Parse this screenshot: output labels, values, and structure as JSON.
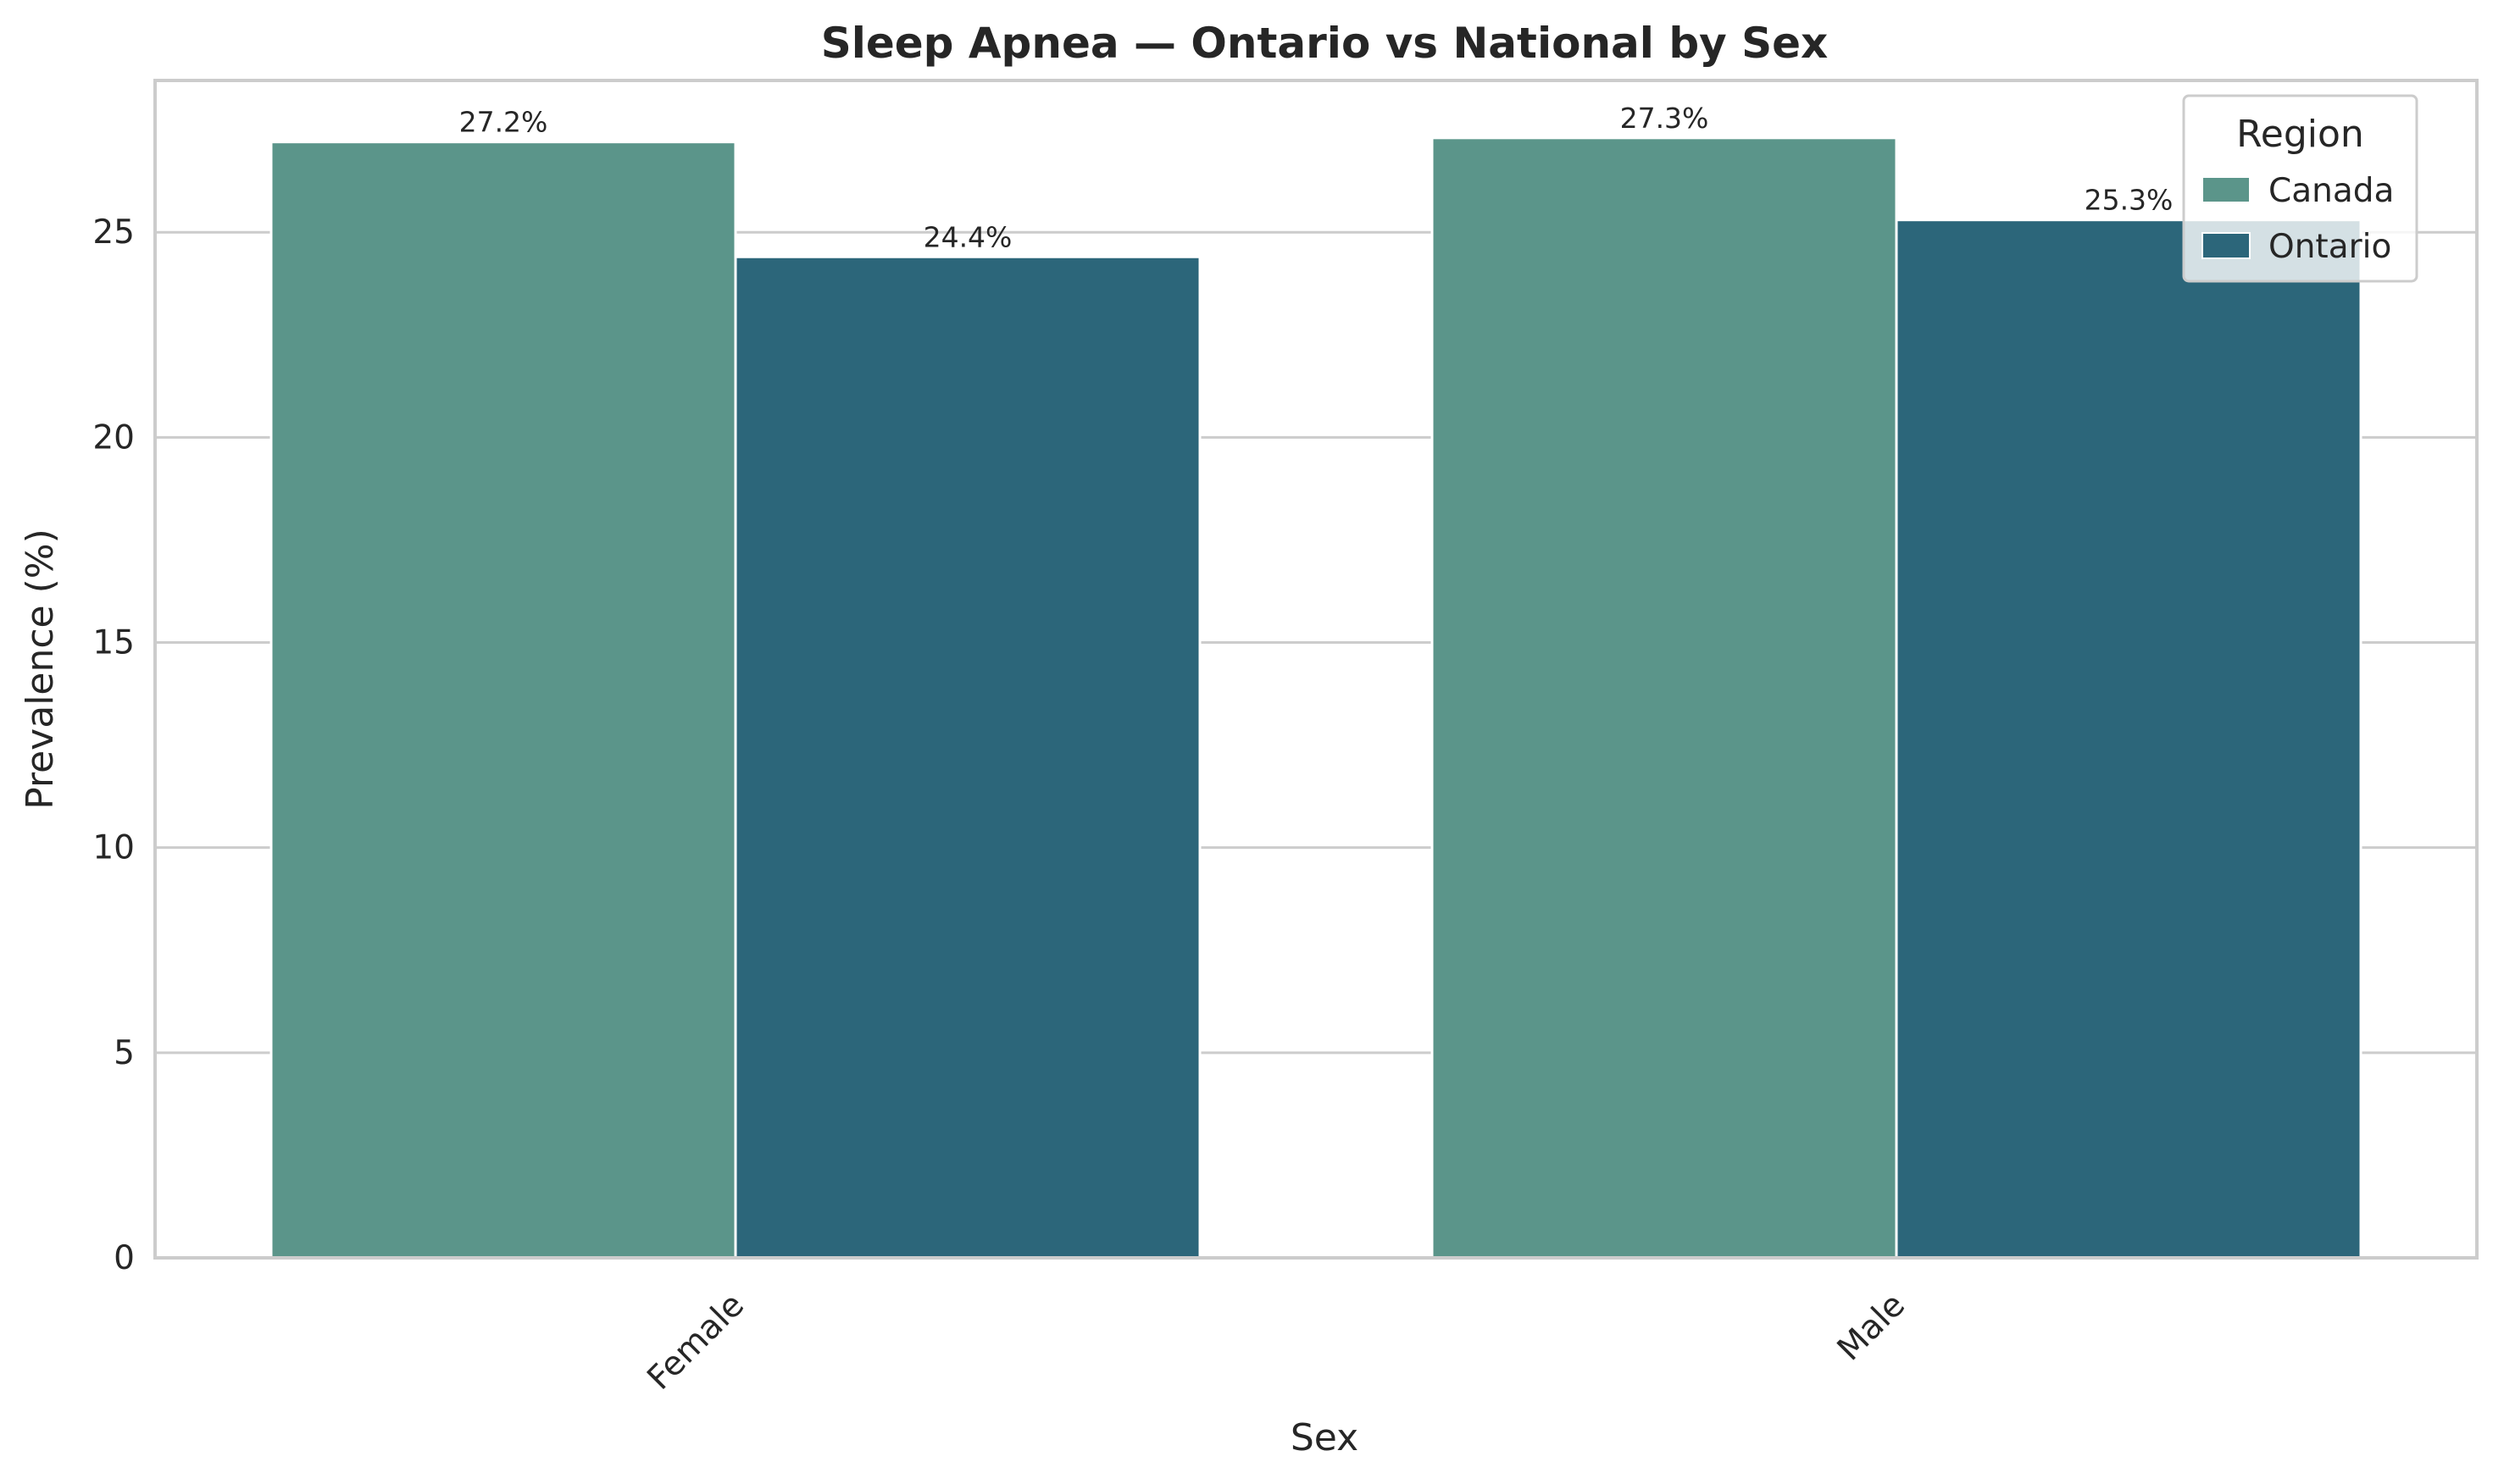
{
  "chart_data": {
    "type": "bar",
    "title": "Sleep Apnea — Ontario vs National by Sex",
    "xlabel": "Sex",
    "ylabel": "Prevalence (%)",
    "categories": [
      "Female",
      "Male"
    ],
    "series": [
      {
        "name": "Canada",
        "color": "#5b958a",
        "values": [
          27.2,
          27.3
        ],
        "labels": [
          "27.2%",
          "27.3%"
        ]
      },
      {
        "name": "Ontario",
        "color": "#2c667a",
        "values": [
          24.4,
          25.3
        ],
        "labels": [
          "24.4%",
          "25.3%"
        ]
      }
    ],
    "ylim": [
      0,
      28.7
    ],
    "yticks": [
      0,
      5,
      10,
      15,
      20,
      25
    ],
    "grid": "horizontal",
    "legend": {
      "title": "Region",
      "placement": "top-right"
    }
  }
}
